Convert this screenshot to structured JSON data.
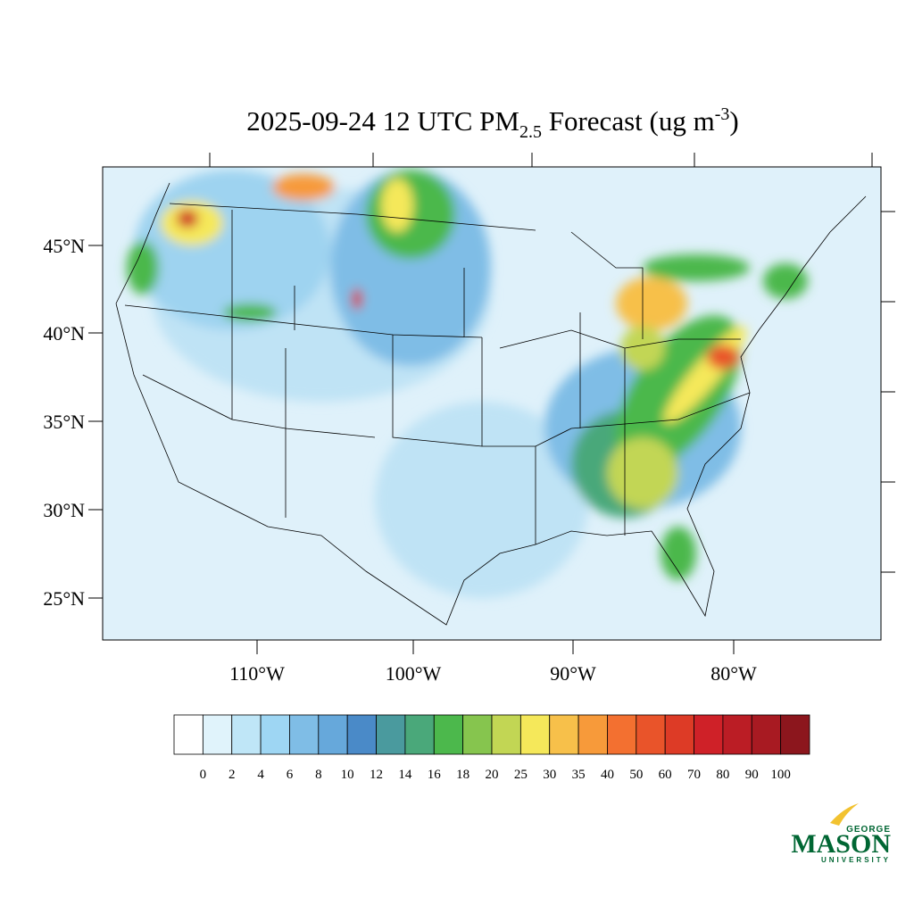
{
  "map": {
    "title_parts": [
      "2025-09-24 12 UTC PM",
      "2.5",
      " Forecast (ug m",
      "-3",
      ")"
    ],
    "lat_labels": [
      "45°N",
      "40°N",
      "35°N",
      "30°N",
      "25°N"
    ],
    "lon_labels": [
      "110°W",
      "100°W",
      "90°W",
      "80°W"
    ],
    "colorbar": {
      "levels": [
        0,
        2,
        4,
        6,
        8,
        10,
        12,
        14,
        16,
        18,
        20,
        25,
        30,
        35,
        40,
        50,
        60,
        70,
        80,
        90,
        100
      ],
      "colors": [
        "#ffffff",
        "#e0f3fb",
        "#bfe6f7",
        "#9ed6f3",
        "#7fbde6",
        "#66a8db",
        "#4a8ac8",
        "#4a9a9e",
        "#4aa87a",
        "#4cb84c",
        "#86c54e",
        "#c2d654",
        "#f5e85a",
        "#f7c04a",
        "#f79a3a",
        "#f37030",
        "#e9542a",
        "#dd3b26",
        "#cf2128",
        "#bb1d25",
        "#a81a22",
        "#8c161d"
      ]
    },
    "logo": {
      "top": "GEORGE",
      "main": "MASON",
      "bottom": "UNIVERSITY"
    }
  }
}
